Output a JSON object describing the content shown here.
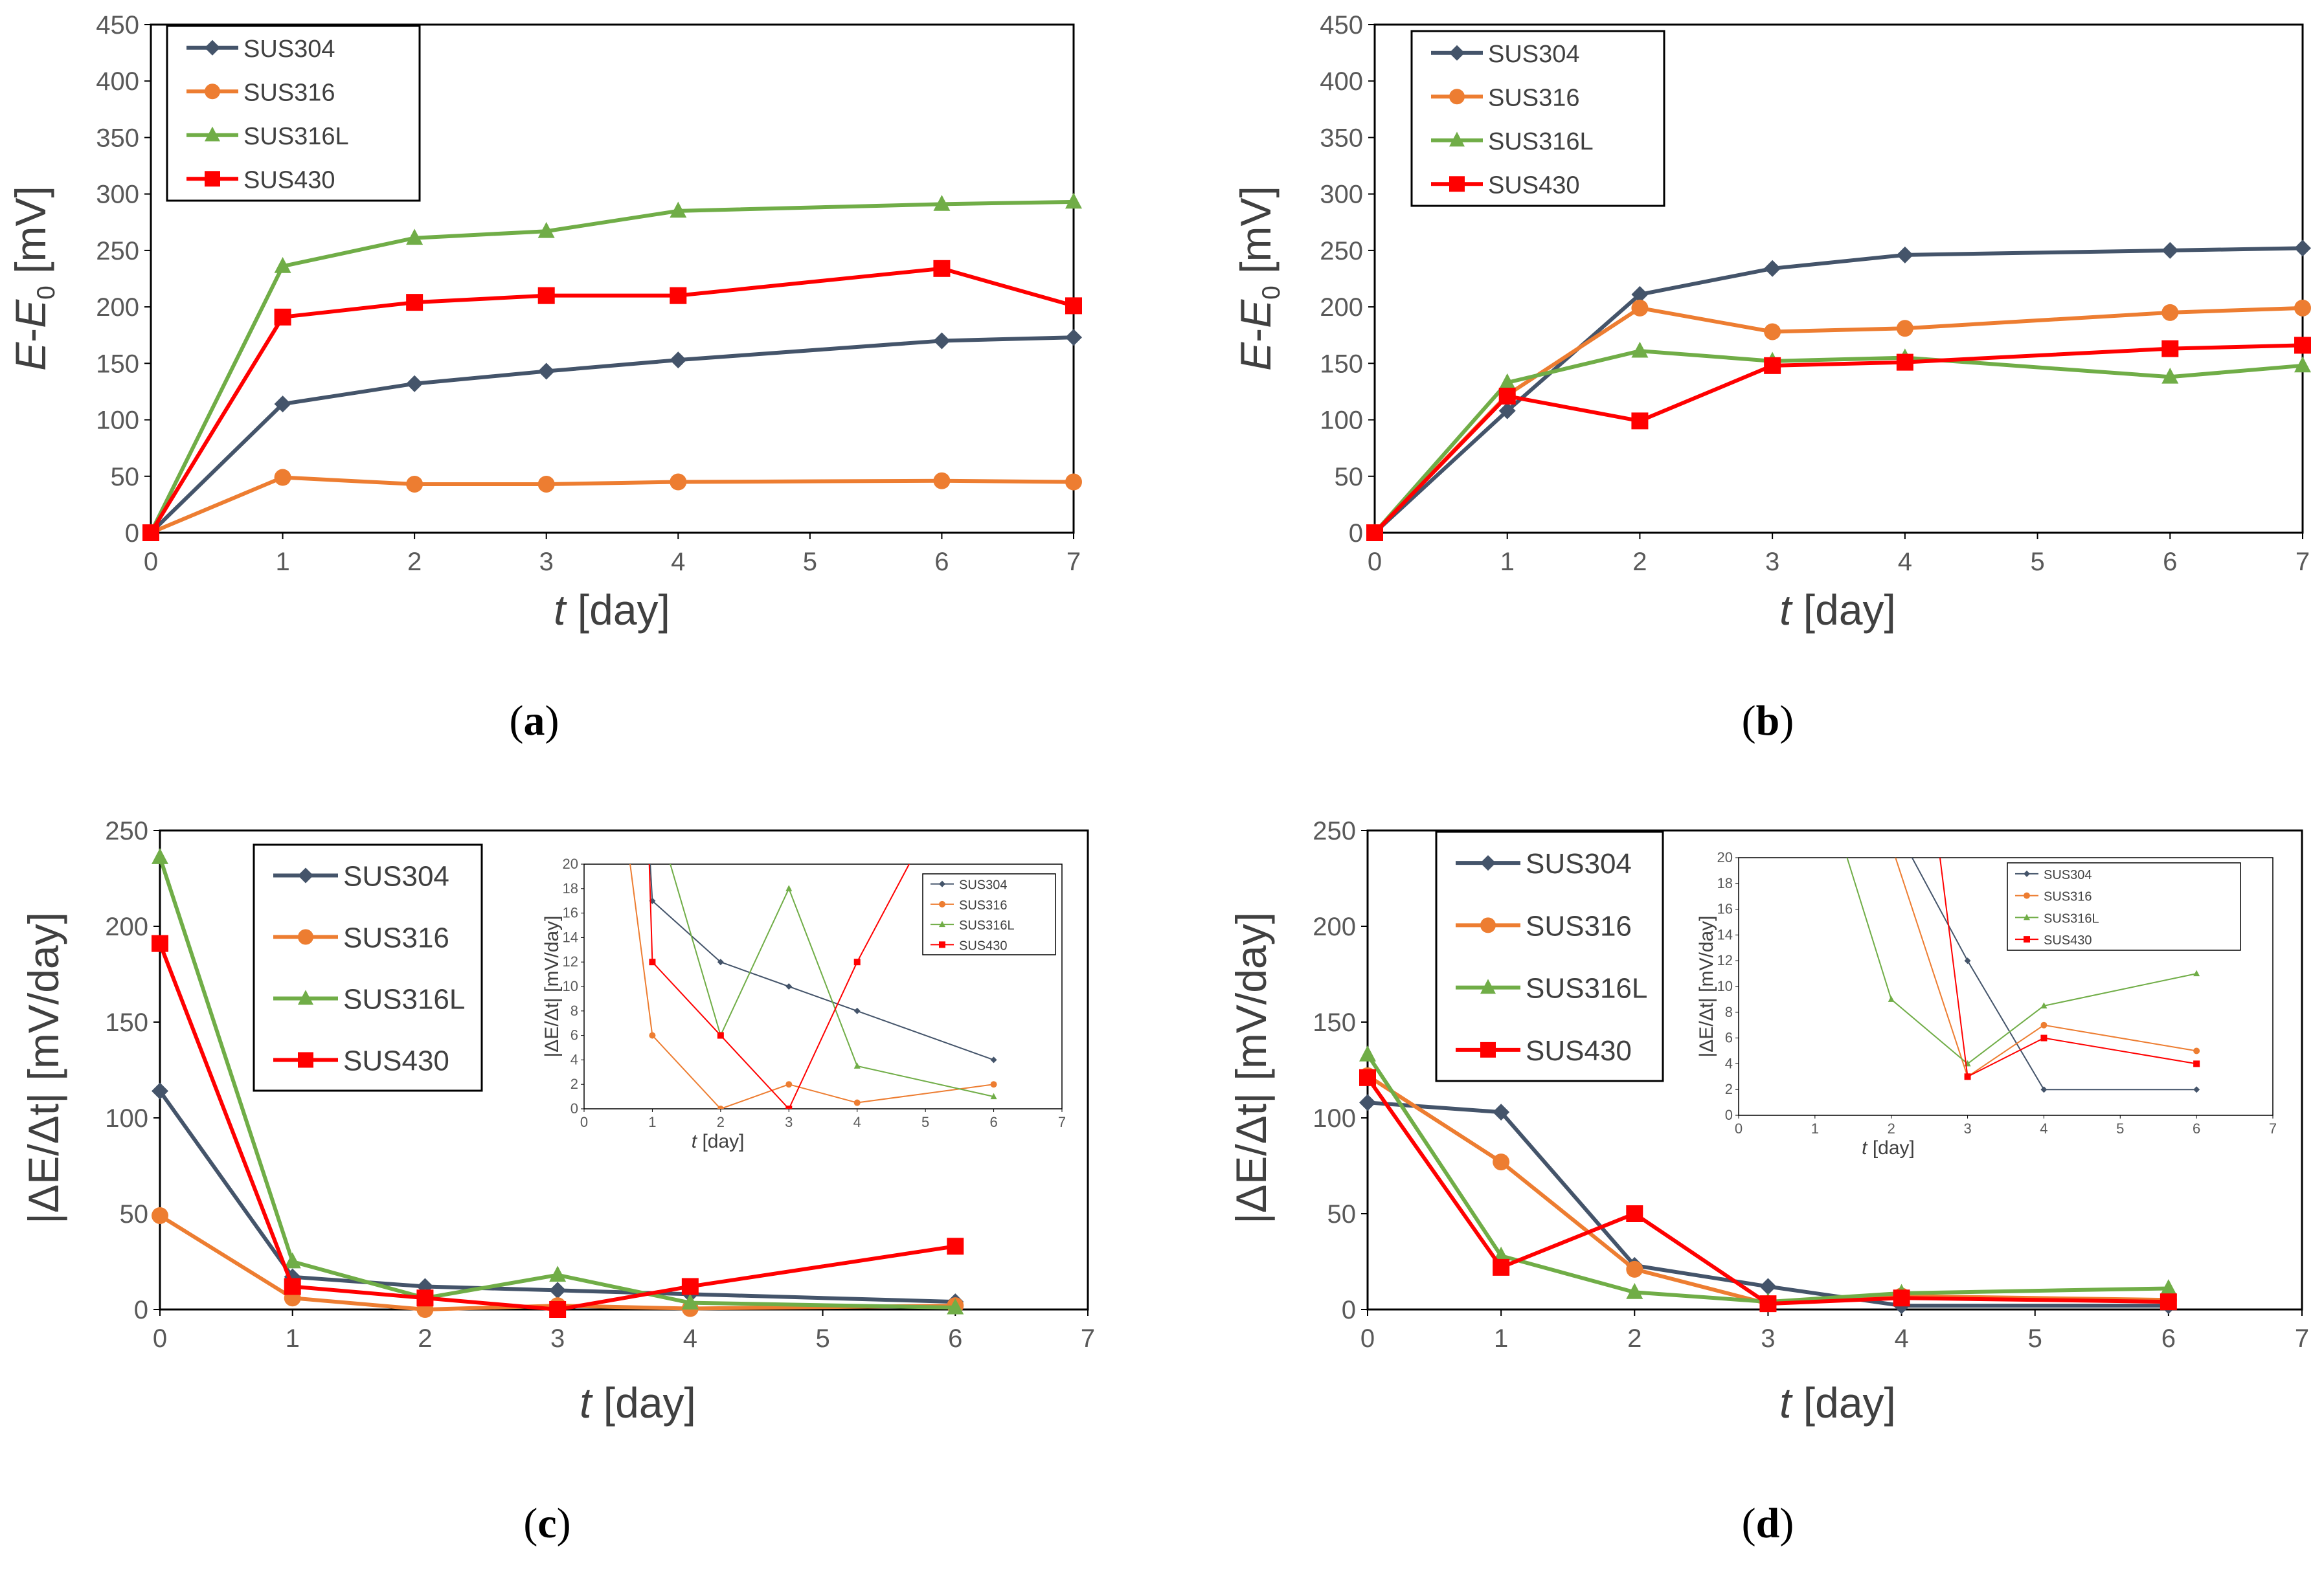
{
  "chart_data": [
    {
      "id": "a",
      "type": "line",
      "panel_label": "(a)",
      "xlabel": "t [day]",
      "ylabel": "E-E0 [mV]",
      "xlim": [
        0,
        7
      ],
      "ylim": [
        0,
        450
      ],
      "xticks": [
        0,
        1,
        2,
        3,
        4,
        5,
        6,
        7
      ],
      "yticks": [
        0,
        50,
        100,
        150,
        200,
        250,
        300,
        350,
        400,
        450
      ],
      "x": [
        0,
        1,
        2,
        3,
        4,
        6,
        7
      ],
      "legend_position": "top-left",
      "series": [
        {
          "name": "SUS304",
          "color": "#44546A",
          "marker": "diamond",
          "values": [
            0,
            114,
            132,
            143,
            153,
            170,
            173
          ]
        },
        {
          "name": "SUS316",
          "color": "#ED7D31",
          "marker": "circle",
          "values": [
            0,
            49,
            43,
            43,
            45,
            46,
            45
          ]
        },
        {
          "name": "SUS316L",
          "color": "#70AD47",
          "marker": "triangle",
          "values": [
            0,
            236,
            261,
            267,
            285,
            291,
            293
          ]
        },
        {
          "name": "SUS430",
          "color": "#FF0000",
          "marker": "square",
          "values": [
            0,
            191,
            204,
            210,
            210,
            234,
            201
          ]
        }
      ]
    },
    {
      "id": "b",
      "type": "line",
      "panel_label": "(b)",
      "xlabel": "t [day]",
      "ylabel": "E-E0 [mV]",
      "xlim": [
        0,
        7
      ],
      "ylim": [
        0,
        450
      ],
      "xticks": [
        0,
        1,
        2,
        3,
        4,
        5,
        6,
        7
      ],
      "yticks": [
        0,
        50,
        100,
        150,
        200,
        250,
        300,
        350,
        400,
        450
      ],
      "x": [
        0,
        1,
        2,
        3,
        4,
        6,
        7
      ],
      "legend_position": "top-left",
      "series": [
        {
          "name": "SUS304",
          "color": "#44546A",
          "marker": "diamond",
          "values": [
            0,
            108,
            211,
            234,
            246,
            250,
            252
          ]
        },
        {
          "name": "SUS316",
          "color": "#ED7D31",
          "marker": "circle",
          "values": [
            0,
            122,
            199,
            178,
            181,
            195,
            199
          ]
        },
        {
          "name": "SUS316L",
          "color": "#70AD47",
          "marker": "triangle",
          "values": [
            0,
            133,
            161,
            152,
            155,
            138,
            148
          ]
        },
        {
          "name": "SUS430",
          "color": "#FF0000",
          "marker": "square",
          "values": [
            0,
            121,
            99,
            148,
            151,
            163,
            166
          ]
        }
      ]
    },
    {
      "id": "c",
      "type": "line",
      "panel_label": "(c)",
      "xlabel": "t [day]",
      "ylabel": "|ΔE/Δt| [mV/day]",
      "xlim": [
        0,
        7
      ],
      "ylim": [
        0,
        250
      ],
      "xticks": [
        0,
        1,
        2,
        3,
        4,
        5,
        6,
        7
      ],
      "yticks": [
        0,
        50,
        100,
        150,
        200,
        250
      ],
      "x": [
        0,
        1,
        2,
        3,
        4,
        6
      ],
      "legend_position": "top-left",
      "series": [
        {
          "name": "SUS304",
          "color": "#44546A",
          "marker": "diamond",
          "values": [
            114,
            17,
            12,
            10,
            8,
            4
          ]
        },
        {
          "name": "SUS316",
          "color": "#ED7D31",
          "marker": "circle",
          "values": [
            49,
            6,
            0,
            2,
            0.5,
            2
          ]
        },
        {
          "name": "SUS316L",
          "color": "#70AD47",
          "marker": "triangle",
          "values": [
            236,
            25,
            6,
            18,
            3.5,
            1
          ]
        },
        {
          "name": "SUS430",
          "color": "#FF0000",
          "marker": "square",
          "values": [
            191,
            12,
            6,
            0,
            12,
            33
          ]
        }
      ],
      "inset": {
        "xlabel": "t [day]",
        "ylabel": "|ΔE/Δt| [mV/day]",
        "xlim": [
          0,
          7
        ],
        "ylim": [
          0,
          20
        ],
        "xticks": [
          0,
          1,
          2,
          3,
          4,
          5,
          6,
          7
        ],
        "yticks": [
          0,
          2,
          4,
          6,
          8,
          10,
          12,
          14,
          16,
          18,
          20
        ],
        "legend_position": "top-right"
      }
    },
    {
      "id": "d",
      "type": "line",
      "panel_label": "(d)",
      "xlabel": "t [day]",
      "ylabel": "|ΔE/Δt| [mV/day]",
      "xlim": [
        0,
        7
      ],
      "ylim": [
        0,
        250
      ],
      "xticks": [
        0,
        1,
        2,
        3,
        4,
        5,
        6,
        7
      ],
      "yticks": [
        0,
        50,
        100,
        150,
        200,
        250
      ],
      "x": [
        0,
        1,
        2,
        3,
        4,
        6
      ],
      "legend_position": "top-left",
      "series": [
        {
          "name": "SUS304",
          "color": "#44546A",
          "marker": "diamond",
          "values": [
            108,
            103,
            23,
            12,
            2,
            2
          ]
        },
        {
          "name": "SUS316",
          "color": "#ED7D31",
          "marker": "circle",
          "values": [
            122,
            77,
            21,
            3,
            7,
            5
          ]
        },
        {
          "name": "SUS316L",
          "color": "#70AD47",
          "marker": "triangle",
          "values": [
            133,
            28,
            9,
            4,
            8.5,
            11
          ]
        },
        {
          "name": "SUS430",
          "color": "#FF0000",
          "marker": "square",
          "values": [
            121,
            22,
            50,
            3,
            6,
            4
          ]
        }
      ],
      "inset": {
        "xlabel": "t [day]",
        "ylabel": "|ΔE/Δt| [mV/day]",
        "xlim": [
          0,
          7
        ],
        "ylim": [
          0,
          20
        ],
        "xticks": [
          0,
          1,
          2,
          3,
          4,
          5,
          6,
          7
        ],
        "yticks": [
          0,
          2,
          4,
          6,
          8,
          10,
          12,
          14,
          16,
          18,
          20
        ],
        "legend_position": "top-right"
      }
    }
  ]
}
